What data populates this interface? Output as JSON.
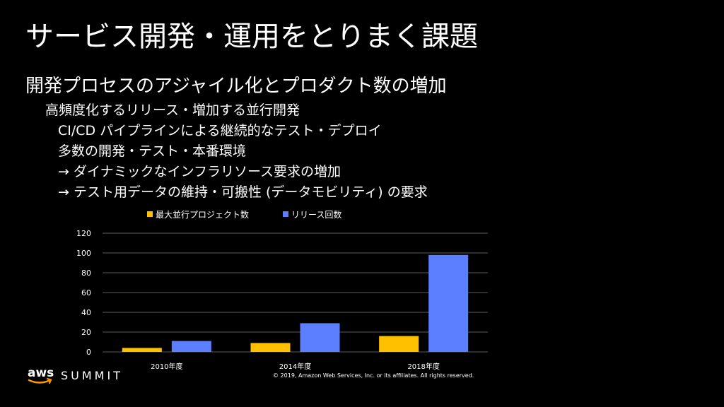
{
  "slide": {
    "title": "サービス開発・運用をとりまく課題",
    "subtitle": "開発プロセスのアジャイル化とプロダクト数の増加",
    "bullets": [
      "高頻度化するリリース・増加する並行開発",
      "CI/CD パイプラインによる継続的なテスト・デプロイ",
      "多数の開発・テスト・本番環境",
      "→ ダイナミックなインフラリソース要求の増加",
      "→ テスト用データの維持・可搬性 (データモビリティ) の要求"
    ]
  },
  "chart_data": {
    "type": "bar",
    "categories": [
      "2010年度",
      "2014年度",
      "2018年度"
    ],
    "series": [
      {
        "name": "最大並行プロジェクト数",
        "color": "#FFC000",
        "values": [
          4,
          9,
          16
        ]
      },
      {
        "name": "リリース回数",
        "color": "#5B7FFF",
        "values": [
          11,
          29,
          98
        ]
      }
    ],
    "ylim": [
      0,
      120
    ],
    "yticks": [
      0,
      20,
      40,
      60,
      80,
      100,
      120
    ],
    "grid": true,
    "legend": "top"
  },
  "footer": {
    "logo_aws": "aws",
    "logo_summit": "SUMMIT",
    "copyright": "© 2019, Amazon Web Services, Inc. or its affiliates. All rights reserved."
  }
}
